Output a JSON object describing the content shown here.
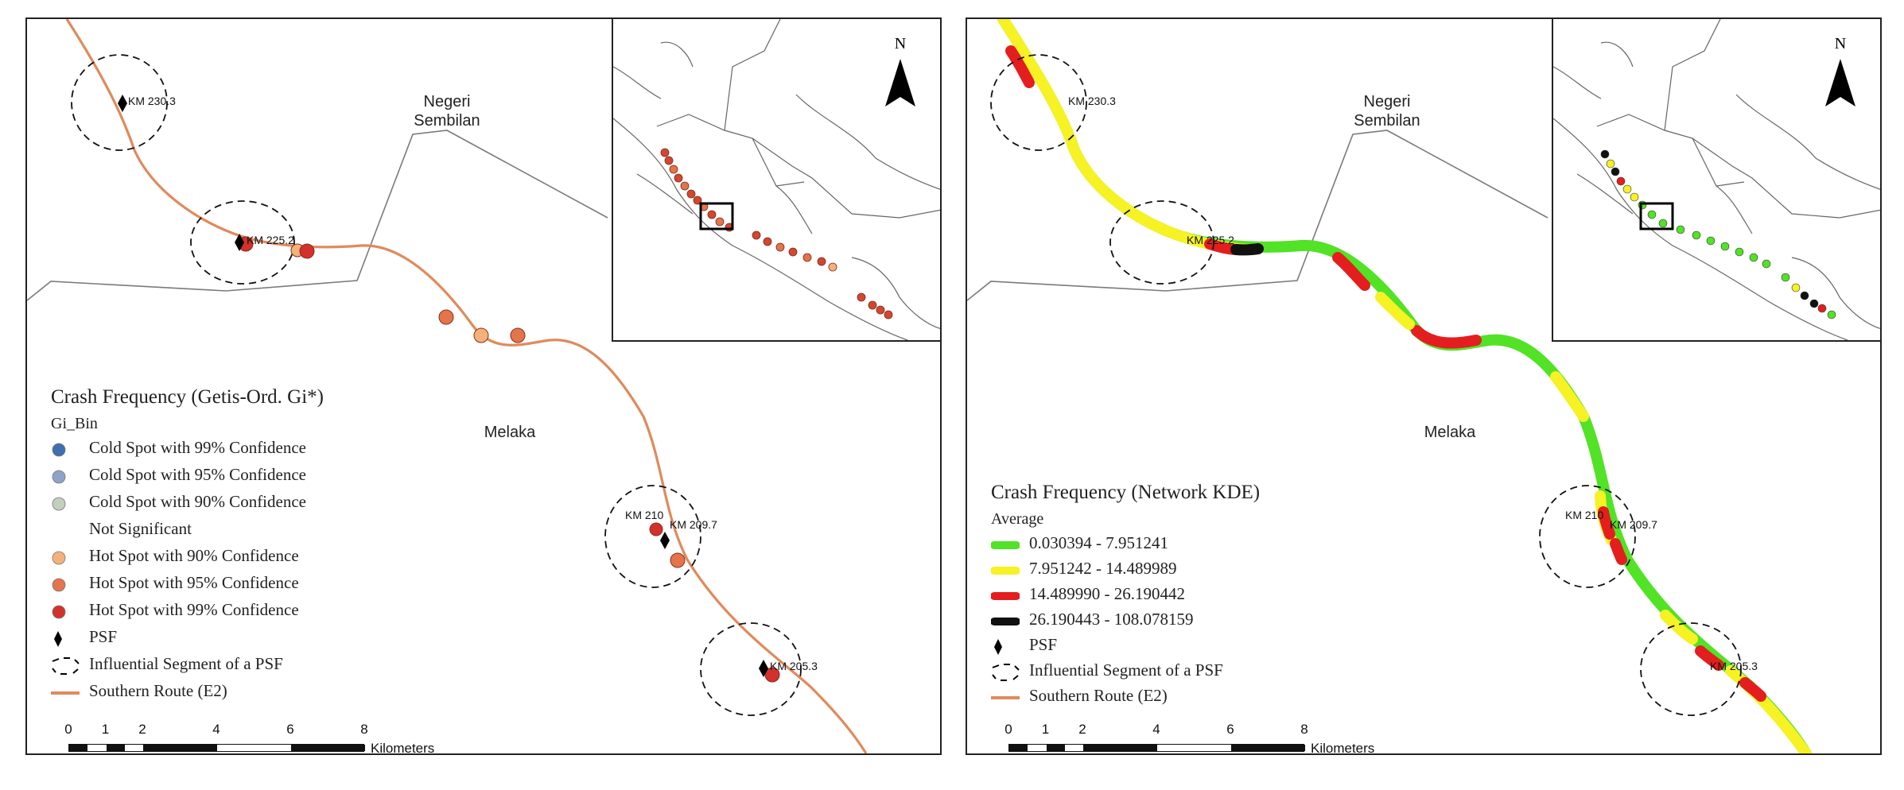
{
  "figure": {
    "left_panel": {
      "region_labels": {
        "negeri": "Negeri\nSembilan",
        "melaka": "Melaka"
      },
      "km_labels": [
        "KM 230.3",
        "KM 225.2",
        "KM 210",
        "KM 209.7",
        "KM 205.3"
      ],
      "north_label": "N",
      "legend": {
        "title": "Crash Frequency (Getis-Ord. Gi*)",
        "subtitle": "Gi_Bin",
        "items": [
          {
            "label": "Cold Spot with 99% Confidence",
            "color": "#3f6fb0"
          },
          {
            "label": "Cold Spot with 95% Confidence",
            "color": "#8ea3c8"
          },
          {
            "label": "Cold Spot with 90% Confidence",
            "color": "#c3cfbd"
          },
          {
            "label": "Not Significant",
            "color": "none"
          },
          {
            "label": "Hot Spot with 90% Confidence",
            "color": "#f4b27a"
          },
          {
            "label": "Hot Spot with 95% Confidence",
            "color": "#e4744a"
          },
          {
            "label": "Hot Spot with 99% Confidence",
            "color": "#d3312b"
          }
        ],
        "psf_label": "PSF",
        "segment_label": "Influential Segment of a PSF",
        "route_label": "Southern Route (E2)"
      },
      "scalebar": {
        "ticks": [
          "0",
          "1",
          "2",
          "4",
          "6",
          "8"
        ],
        "unit": "Kilometers"
      }
    },
    "right_panel": {
      "region_labels": {
        "negeri": "Negeri\nSembilan",
        "melaka": "Melaka"
      },
      "km_labels": [
        "KM 230.3",
        "KM 225.2",
        "KM 210",
        "KM 209.7",
        "KM 205.3"
      ],
      "north_label": "N",
      "legend": {
        "title": "Crash Frequency (Network KDE)",
        "subtitle": "Average",
        "items": [
          {
            "label": "0.030394 - 7.951241",
            "color": "#52e226"
          },
          {
            "label": "7.951242 - 14.489989",
            "color": "#f6f223"
          },
          {
            "label": "14.489990 - 26.190442",
            "color": "#e41e1e"
          },
          {
            "label": "26.190443 - 108.078159",
            "color": "#111111"
          }
        ],
        "psf_label": "PSF",
        "segment_label": "Influential Segment of a PSF",
        "route_label": "Southern Route (E2)"
      },
      "scalebar": {
        "ticks": [
          "0",
          "1",
          "2",
          "4",
          "6",
          "8"
        ],
        "unit": "Kilometers"
      }
    },
    "colors": {
      "route": "#e08a5c",
      "boundary": "#7a7a7a",
      "frame": "#222222"
    }
  }
}
